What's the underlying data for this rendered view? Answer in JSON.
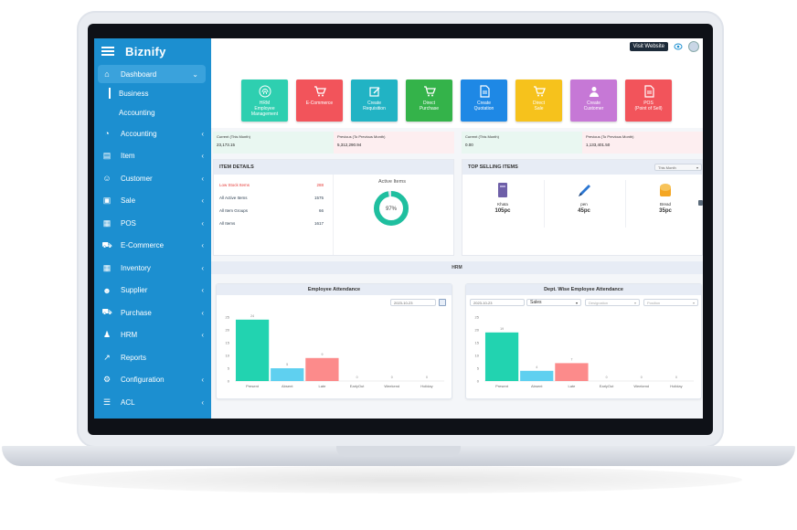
{
  "app": {
    "brand": "Biznify",
    "visit_website": "Visit Website"
  },
  "sidebar": {
    "items": [
      {
        "label": "Dashboard",
        "icon": "home-icon"
      },
      {
        "label": "Accounting",
        "icon": "pie-chart-icon"
      },
      {
        "label": "Item",
        "icon": "item-card-icon"
      },
      {
        "label": "Customer",
        "icon": "users-icon"
      },
      {
        "label": "Sale",
        "icon": "bag-icon"
      },
      {
        "label": "POS",
        "icon": "briefcase-icon"
      },
      {
        "label": "E-Commerce",
        "icon": "cart-icon"
      },
      {
        "label": "Inventory",
        "icon": "grid-icon"
      },
      {
        "label": "Supplier",
        "icon": "supplier-icon"
      },
      {
        "label": "Purchase",
        "icon": "purchase-cart-icon"
      },
      {
        "label": "HRM",
        "icon": "hrm-icon"
      },
      {
        "label": "Reports",
        "icon": "trend-icon"
      },
      {
        "label": "Configuration",
        "icon": "gear-icon"
      },
      {
        "label": "ACL",
        "icon": "sliders-icon"
      }
    ],
    "dashboard_sub": [
      "Business",
      "Accounting"
    ]
  },
  "tiles": [
    {
      "label": "HRM",
      "sub": "Employee Management",
      "color": "#2ecfb0",
      "icon": "fingerprint-icon"
    },
    {
      "label": "E-Commerce",
      "sub": "",
      "color": "#f2545b",
      "icon": "cart-icon"
    },
    {
      "label": "Create",
      "sub": "Requisition",
      "color": "#21b3c4",
      "icon": "edit-icon"
    },
    {
      "label": "Direct",
      "sub": "Purchase",
      "color": "#34b34a",
      "icon": "cart-icon"
    },
    {
      "label": "Create",
      "sub": "Quotation",
      "color": "#1e88e5",
      "icon": "document-icon"
    },
    {
      "label": "Direct",
      "sub": "Sale",
      "color": "#f6c21c",
      "icon": "cart-icon"
    },
    {
      "label": "Create",
      "sub": "Customer",
      "color": "#c678d6",
      "icon": "user-icon"
    },
    {
      "label": "POS",
      "sub": "(Point of Sell)",
      "color": "#f2545b",
      "icon": "document-icon"
    }
  ],
  "stats": [
    {
      "current_label": "Current (This Month)",
      "current_value": "23,173.15",
      "previous_label": "Previous (To Previous Month)",
      "previous_value": "5,312,290.94"
    },
    {
      "current_label": "Current (This Month)",
      "current_value": "0.00",
      "previous_label": "Previous (To Previous Month)",
      "previous_value": "1,133,401.50"
    }
  ],
  "item_details": {
    "title": "ITEM DETAILS",
    "rows": [
      {
        "label": "Low Stock Items",
        "value": "288",
        "color": "#e53935"
      },
      {
        "label": "All Active Items",
        "value": "1575",
        "color": "#2c3e50"
      },
      {
        "label": "All Item Groups",
        "value": "66",
        "color": "#2c3e50"
      },
      {
        "label": "All Items",
        "value": "1617",
        "color": "#2c3e50"
      }
    ],
    "donut_title": "Active Items",
    "donut_percent_label": "97%",
    "donut_fraction": 0.97
  },
  "top_selling": {
    "title": "TOP SELLING ITEMS",
    "period": "This Month",
    "products": [
      {
        "name": "Khata",
        "qty": "105pc",
        "icon": "notebook-icon"
      },
      {
        "name": "pen",
        "qty": "45pc",
        "icon": "pen-icon"
      },
      {
        "name": "Bread",
        "qty": "35pc",
        "icon": "bread-icon"
      }
    ]
  },
  "hrm": {
    "band_label": "HRM"
  },
  "chart_data": [
    {
      "type": "bar",
      "title": "Employee Attendance",
      "date": "2023-10-23",
      "categories": [
        "Present",
        "Absent",
        "Late",
        "EarlyOut",
        "Weekend",
        "Holiday"
      ],
      "values": [
        24,
        5,
        9,
        0,
        0,
        0
      ],
      "data_labels": [
        "24",
        "5",
        "9",
        "0",
        "0",
        "0"
      ],
      "colors": [
        "#22d3b0",
        "#5fd0f0",
        "#fc8b8b",
        "#cccccc",
        "#cccccc",
        "#cccccc"
      ],
      "ylim": [
        0,
        25
      ],
      "yticks": [
        0,
        5,
        10,
        15,
        20,
        25
      ]
    },
    {
      "type": "bar",
      "title": "Dept. Wise Employee Attendance",
      "date": "2023-10-23",
      "department": "Sales",
      "designation_placeholder": "Designation",
      "position_placeholder": "Position",
      "categories": [
        "Present",
        "Absent",
        "Late",
        "EarlyOut",
        "Weekend",
        "Holiday"
      ],
      "values": [
        19,
        4,
        7,
        0,
        0,
        0
      ],
      "data_labels": [
        "19",
        "4",
        "7",
        "0",
        "0",
        "0"
      ],
      "colors": [
        "#22d3b0",
        "#5fd0f0",
        "#fc8b8b",
        "#cccccc",
        "#cccccc",
        "#cccccc"
      ],
      "ylim": [
        0,
        25
      ],
      "yticks": [
        0,
        5,
        10,
        15,
        20,
        25
      ]
    }
  ]
}
